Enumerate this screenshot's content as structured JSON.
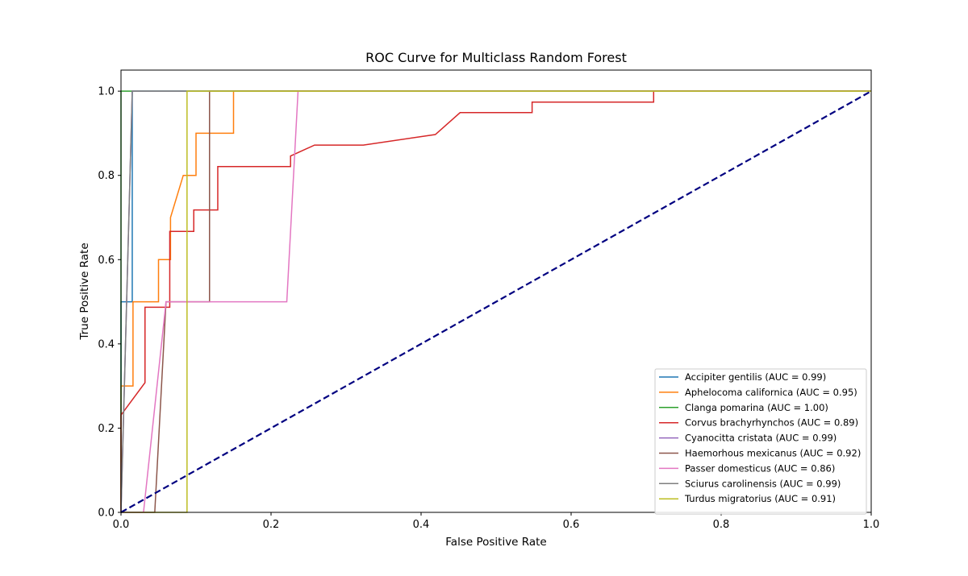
{
  "chart_data": {
    "type": "line",
    "title": "ROC Curve for Multiclass Random Forest",
    "xlabel": "False Positive Rate",
    "ylabel": "True Positive Rate",
    "xlim": [
      0,
      1
    ],
    "ylim": [
      0,
      1.05
    ],
    "x_ticks": [
      "0.0",
      "0.2",
      "0.4",
      "0.6",
      "0.8",
      "1.0"
    ],
    "y_ticks": [
      "0.0",
      "0.2",
      "0.4",
      "0.6",
      "0.8",
      "1.0"
    ],
    "grid": false,
    "legend_position": "lower-right",
    "series": [
      {
        "name": "Accipiter gentilis (AUC = 0.99)",
        "color": "#1f77b4",
        "x": [
          0,
          0,
          0.015,
          0.015,
          1
        ],
        "y": [
          0,
          0.5,
          0.5,
          1.0,
          1.0
        ]
      },
      {
        "name": "Aphelocoma californica (AUC = 0.95)",
        "color": "#ff7f0e",
        "x": [
          0,
          0,
          0.016,
          0.016,
          0.05,
          0.05,
          0.066,
          0.066,
          0.083,
          0.083,
          0.1,
          0.1,
          0.15,
          0.15,
          1
        ],
        "y": [
          0,
          0.3,
          0.3,
          0.5,
          0.5,
          0.6,
          0.6,
          0.7,
          0.8,
          0.8,
          0.8,
          0.9,
          0.9,
          1.0,
          1.0
        ]
      },
      {
        "name": "Clanga pomarina (AUC = 1.00)",
        "color": "#2ca02c",
        "x": [
          0,
          0,
          1
        ],
        "y": [
          0,
          1.0,
          1.0
        ]
      },
      {
        "name": "Corvus brachyrhynchos (AUC = 0.89)",
        "color": "#d62728",
        "x": [
          0,
          0,
          0.032,
          0.032,
          0.065,
          0.065,
          0.097,
          0.097,
          0.129,
          0.129,
          0.226,
          0.226,
          0.258,
          0.323,
          0.419,
          0.452,
          0.548,
          0.548,
          0.71,
          0.71,
          1
        ],
        "y": [
          0,
          0.231,
          0.308,
          0.487,
          0.487,
          0.667,
          0.667,
          0.718,
          0.718,
          0.821,
          0.821,
          0.846,
          0.872,
          0.872,
          0.897,
          0.949,
          0.949,
          0.974,
          0.974,
          1.0,
          1.0
        ]
      },
      {
        "name": "Cyanocitta cristata (AUC = 0.99)",
        "color": "#9467bd",
        "x": [
          0,
          0.015,
          1
        ],
        "y": [
          0,
          1.0,
          1.0
        ]
      },
      {
        "name": "Haemorhous mexicanus (AUC = 0.92)",
        "color": "#8c564b",
        "x": [
          0,
          0.045,
          0.06,
          0.118,
          0.118,
          1
        ],
        "y": [
          0,
          0,
          0.5,
          0.5,
          1.0,
          1.0
        ]
      },
      {
        "name": "Passer domesticus (AUC = 0.86)",
        "color": "#e377c2",
        "x": [
          0,
          0.03,
          0.06,
          0.221,
          0.236,
          1
        ],
        "y": [
          0,
          0,
          0.5,
          0.5,
          1.0,
          1.0
        ]
      },
      {
        "name": "Sciurus carolinensis (AUC = 0.99)",
        "color": "#7f7f7f",
        "x": [
          0,
          0.015,
          1
        ],
        "y": [
          0,
          1.0,
          1.0
        ]
      },
      {
        "name": "Turdus migratorius (AUC = 0.91)",
        "color": "#bcbd22",
        "x": [
          0,
          0.088,
          0.088,
          1
        ],
        "y": [
          0,
          0,
          1.0,
          1.0
        ]
      }
    ],
    "reference_line": {
      "color": "#000080",
      "style": "dashed",
      "x": [
        0,
        1
      ],
      "y": [
        0,
        1
      ]
    }
  }
}
